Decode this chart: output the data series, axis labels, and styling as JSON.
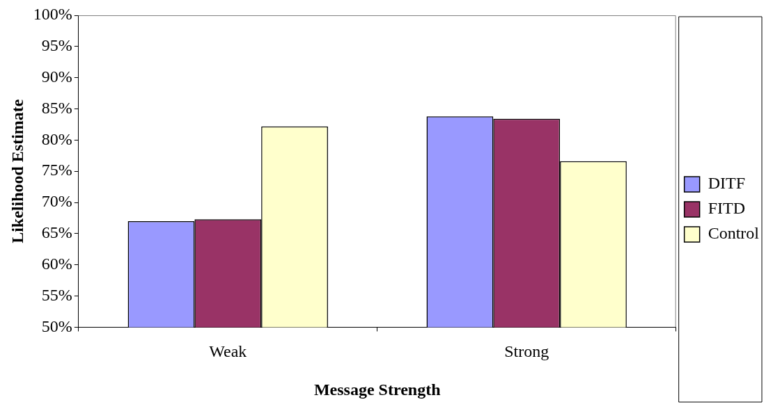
{
  "chart_data": {
    "type": "bar",
    "xlabel": "Message Strength",
    "ylabel": "Likelihood Estimate",
    "categories": [
      "Weak",
      "Strong"
    ],
    "series": [
      {
        "name": "DITF",
        "color": "#9999ff",
        "values": [
          67.0,
          83.8
        ]
      },
      {
        "name": "FITD",
        "color": "#993366",
        "values": [
          67.3,
          83.4
        ]
      },
      {
        "name": "Control",
        "color": "#ffffcc",
        "values": [
          82.2,
          76.6
        ]
      }
    ],
    "ylim": [
      50,
      100
    ],
    "yticks": [
      {
        "value": 50,
        "label": "50%"
      },
      {
        "value": 55,
        "label": "55%"
      },
      {
        "value": 60,
        "label": "60%"
      },
      {
        "value": 65,
        "label": "65%"
      },
      {
        "value": 70,
        "label": "70%"
      },
      {
        "value": 75,
        "label": "75%"
      },
      {
        "value": 80,
        "label": "80%"
      },
      {
        "value": 85,
        "label": "85%"
      },
      {
        "value": 90,
        "label": "90%"
      },
      {
        "value": 95,
        "label": "95%"
      },
      {
        "value": 100,
        "label": "100%"
      }
    ],
    "legend": "right"
  }
}
